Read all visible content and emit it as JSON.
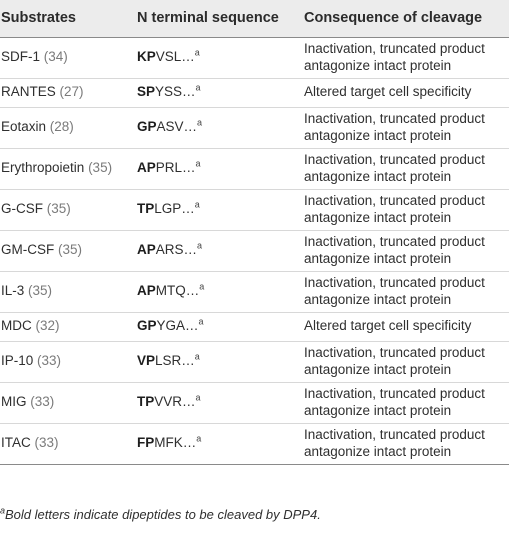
{
  "table": {
    "headers": [
      "Substrates",
      "N terminal sequence",
      "Consequence of cleavage"
    ],
    "rows": [
      {
        "name": "SDF-1",
        "ref": "(34)",
        "bold": "KP",
        "rest": "VSL…",
        "sup": "a",
        "consequence": [
          "Inactivation, truncated product",
          "antagonize intact protein"
        ]
      },
      {
        "name": "RANTES",
        "ref": "(27)",
        "bold": "SP",
        "rest": "YSS…",
        "sup": "a",
        "consequence": [
          "Altered target cell specificity"
        ]
      },
      {
        "name": "Eotaxin",
        "ref": "(28)",
        "bold": "GP",
        "rest": "ASV…",
        "sup": "a",
        "consequence": [
          "Inactivation, truncated product",
          "antagonize intact protein"
        ]
      },
      {
        "name": "Erythropoietin",
        "ref": "(35)",
        "bold": "AP",
        "rest": "PRL…",
        "sup": "a",
        "consequence": [
          "Inactivation, truncated product",
          "antagonize intact protein"
        ]
      },
      {
        "name": "G-CSF",
        "ref": "(35)",
        "bold": "TP",
        "rest": "LGP…",
        "sup": "a",
        "consequence": [
          "Inactivation, truncated product",
          "antagonize intact protein"
        ]
      },
      {
        "name": "GM-CSF",
        "ref": "(35)",
        "bold": "AP",
        "rest": "ARS…",
        "sup": "a",
        "consequence": [
          "Inactivation, truncated product",
          "antagonize intact protein"
        ]
      },
      {
        "name": "IL-3",
        "ref": "(35)",
        "bold": "AP",
        "rest": "MTQ…",
        "sup": "a",
        "consequence": [
          "Inactivation, truncated product",
          "antagonize intact protein"
        ]
      },
      {
        "name": "MDC",
        "ref": "(32)",
        "bold": "GP",
        "rest": "YGA…",
        "sup": "a",
        "consequence": [
          "Altered target cell specificity"
        ]
      },
      {
        "name": "IP-10",
        "ref": "(33)",
        "bold": "VP",
        "rest": "LSR…",
        "sup": "a",
        "consequence": [
          "Inactivation, truncated product",
          "antagonize intact protein"
        ]
      },
      {
        "name": "MIG",
        "ref": "(33)",
        "bold": "TP",
        "rest": "VVR…",
        "sup": "a",
        "consequence": [
          "Inactivation, truncated product",
          "antagonize intact protein"
        ]
      },
      {
        "name": "ITAC",
        "ref": "(33)",
        "bold": "FP",
        "rest": "MFK…",
        "sup": "a",
        "consequence": [
          "Inactivation, truncated product",
          "antagonize intact protein"
        ]
      }
    ]
  },
  "footnote": {
    "mark": "a",
    "text": "Bold letters indicate dipeptides to be cleaved by DPP4."
  }
}
